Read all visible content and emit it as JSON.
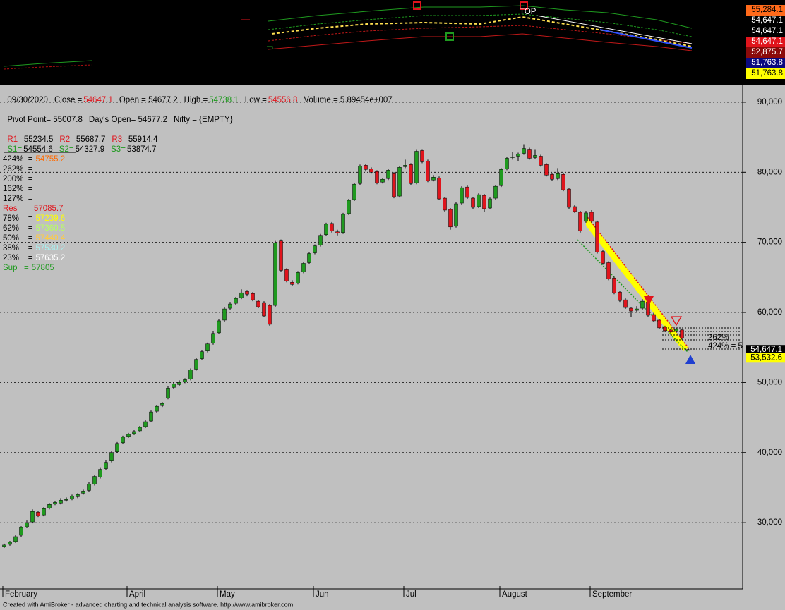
{
  "chart_data": {
    "type": "candlestick",
    "categories": [
      "February",
      null,
      null,
      null,
      null,
      null,
      null,
      null,
      null,
      null,
      null,
      null,
      null,
      null,
      null,
      null,
      null,
      null,
      null,
      null,
      null,
      null,
      "April",
      null,
      null,
      null,
      null,
      null,
      null,
      null,
      null,
      null,
      null,
      null,
      null,
      null,
      null,
      null,
      "May",
      null,
      null,
      null,
      null,
      null,
      null,
      null,
      null,
      null,
      null,
      null,
      null,
      null,
      null,
      null,
      null,
      "Jun",
      null,
      null,
      null,
      null,
      null,
      null,
      null,
      null,
      null,
      null,
      null,
      null,
      null,
      null,
      null,
      "Jul",
      null,
      null,
      null,
      null,
      null,
      null,
      null,
      null,
      null,
      null,
      null,
      null,
      null,
      null,
      null,
      null,
      "August",
      null,
      null,
      null,
      null,
      null,
      null,
      null,
      null,
      null,
      null,
      null,
      null,
      null,
      null,
      null,
      "September",
      null,
      null,
      null,
      null,
      null,
      null,
      null,
      null,
      null,
      null,
      null,
      null,
      null,
      null,
      null,
      null,
      null
    ],
    "open": [
      26600,
      26900,
      27300,
      28200,
      29400,
      30100,
      31500,
      31100,
      32100,
      32700,
      32800,
      33300,
      33400,
      33700,
      34200,
      34600,
      35500,
      36500,
      37700,
      38800,
      40100,
      41400,
      42300,
      42700,
      43100,
      43700,
      44500,
      45900,
      46700,
      47800,
      49300,
      49700,
      50100,
      50500,
      51900,
      53400,
      54500,
      55600,
      57100,
      58900,
      60600,
      61300,
      62100,
      63000,
      62700,
      61600,
      61400,
      61000,
      61000,
      70200,
      66100,
      64300,
      64200,
      65800,
      67100,
      68500,
      69600,
      71100,
      72700,
      71500,
      71400,
      74100,
      76100,
      78400,
      81000,
      80500,
      80100,
      78600,
      79100,
      79800,
      76600,
      80800,
      81100,
      78500,
      83100,
      81600,
      78900,
      79200,
      76300,
      74700,
      72300,
      75600,
      77900,
      76300,
      75100,
      76700,
      74900,
      76300,
      78100,
      80500,
      82100,
      82300,
      82700,
      83300,
      82100,
      82300,
      81100,
      79700,
      79100,
      79700,
      77600,
      75100,
      74300,
      73000,
      74300,
      72900,
      68700,
      67100,
      64900,
      62900,
      61800,
      60600,
      60300,
      60600,
      61500,
      59700,
      58900,
      57900,
      57500,
      57300,
      57500,
      54677.2
    ],
    "high": [
      27000,
      27400,
      28200,
      29500,
      30300,
      31900,
      31700,
      32200,
      32800,
      33100,
      33500,
      33600,
      34000,
      34200,
      34700,
      35800,
      36800,
      37900,
      38900,
      40200,
      41500,
      42400,
      42800,
      43200,
      43800,
      44600,
      46000,
      46800,
      47200,
      49500,
      50000,
      50300,
      50600,
      52000,
      53500,
      54600,
      55700,
      57300,
      59100,
      60800,
      61500,
      62200,
      63300,
      63200,
      62900,
      61800,
      61600,
      61200,
      70200,
      70400,
      66300,
      64600,
      65900,
      67200,
      68600,
      69700,
      71200,
      72800,
      72900,
      71800,
      74200,
      76200,
      78500,
      81100,
      81200,
      80700,
      80300,
      79200,
      80500,
      80000,
      80900,
      81800,
      81300,
      83300,
      83300,
      81800,
      79600,
      79400,
      76500,
      74900,
      75700,
      78000,
      78100,
      76500,
      77000,
      76900,
      76400,
      78200,
      80600,
      82200,
      82900,
      82800,
      84000,
      83500,
      83300,
      82500,
      81300,
      79900,
      80600,
      79900,
      77800,
      75300,
      74500,
      74500,
      74600,
      73100,
      68900,
      67300,
      65100,
      63100,
      62000,
      60800,
      60900,
      61900,
      61700,
      59900,
      59100,
      58100,
      57700,
      57800,
      57700,
      54738.1
    ],
    "low": [
      26400,
      26700,
      27100,
      28000,
      29200,
      29900,
      30800,
      30900,
      31900,
      32500,
      32600,
      33000,
      33200,
      33500,
      34000,
      34400,
      35300,
      36300,
      37500,
      38600,
      39900,
      41200,
      42100,
      42500,
      42900,
      43500,
      44300,
      45700,
      46500,
      47600,
      49100,
      49500,
      49900,
      50300,
      51700,
      53200,
      54300,
      55400,
      56900,
      58700,
      60400,
      61100,
      61900,
      62300,
      61600,
      60600,
      59300,
      58100,
      60800,
      65800,
      64300,
      63800,
      64000,
      65600,
      66900,
      68300,
      69400,
      70900,
      71400,
      71000,
      71200,
      73900,
      75900,
      78200,
      80100,
      79800,
      78300,
      78400,
      78900,
      76300,
      76400,
      80600,
      78200,
      78300,
      81300,
      78600,
      78700,
      76000,
      74400,
      71800,
      72100,
      75400,
      76200,
      74800,
      74900,
      74400,
      74700,
      76100,
      77900,
      80300,
      81800,
      81600,
      82500,
      81800,
      81900,
      80800,
      79400,
      78800,
      78900,
      77300,
      74800,
      74200,
      71400,
      72800,
      72800,
      68400,
      66800,
      64600,
      62600,
      61500,
      60500,
      59300,
      60100,
      60400,
      59400,
      58600,
      57600,
      57200,
      57000,
      57100,
      56100,
      54556.8
    ],
    "close": [
      26800,
      27200,
      28000,
      29300,
      30000,
      31600,
      31000,
      32000,
      32600,
      32900,
      33200,
      33300,
      33800,
      34000,
      34500,
      35500,
      36600,
      37600,
      38600,
      40000,
      41300,
      42200,
      42600,
      43000,
      43600,
      44400,
      45800,
      46600,
      47000,
      49200,
      49800,
      50000,
      50400,
      51800,
      53300,
      54400,
      55500,
      57000,
      58800,
      60500,
      61200,
      62000,
      62800,
      62600,
      61800,
      60800,
      59500,
      58300,
      69900,
      66000,
      64500,
      64000,
      65700,
      67000,
      68400,
      69500,
      71000,
      72600,
      71600,
      71300,
      74000,
      76000,
      78300,
      80900,
      80400,
      80000,
      78500,
      79000,
      80300,
      76500,
      80700,
      81000,
      78400,
      83000,
      81500,
      78800,
      79300,
      76200,
      74600,
      72200,
      75500,
      77800,
      76400,
      75000,
      76800,
      74800,
      76200,
      78000,
      80400,
      82000,
      82200,
      82600,
      83400,
      82000,
      82400,
      81000,
      79600,
      79000,
      79800,
      77500,
      75000,
      74400,
      71600,
      74200,
      73000,
      68600,
      67000,
      64800,
      62800,
      61700,
      60700,
      60200,
      60500,
      61600,
      59600,
      58800,
      57800,
      57400,
      57200,
      57600,
      56300,
      54647.1
    ],
    "up_color": "#1f9a1f",
    "down_color": "#e0141c",
    "ylim": [
      20550,
      92510
    ],
    "yticks": [
      {
        "value": 30000,
        "label": "30,000"
      },
      {
        "value": 40000,
        "label": "40,000"
      },
      {
        "value": 50000,
        "label": "50,000"
      },
      {
        "value": 60000,
        "label": "60,000"
      },
      {
        "value": 70000,
        "label": "70,000"
      },
      {
        "value": 80000,
        "label": "80,000"
      },
      {
        "value": 90000,
        "label": "90,000"
      }
    ],
    "grid": true,
    "axis_tags": [
      {
        "value": 54647.1,
        "label": "54,647.1",
        "bg": "#000000",
        "fg": "#ffffff"
      },
      {
        "value": 53532.6,
        "label": "53,532.6",
        "bg": "#ffff00",
        "fg": "#000000"
      }
    ]
  },
  "info": {
    "date": "09/30/2020",
    "close_label": "Close =",
    "close": "54647.1",
    "open": "Open = 54677.2",
    "high_label": "High =",
    "high": "54738.1",
    "low_label": "Low =",
    "low": "54556.8",
    "volume": "Volume = 5.89454e+007",
    "pivot": "Pivot Point= 55007.8",
    "days_open": "Day's Open= 54677.2",
    "symbol": "Nifty = {EMPTY}",
    "r1_label": "R1=",
    "r1": "55234.5",
    "r2_label": "R2=",
    "r2": "55687.7",
    "r3_label": "R3=",
    "r3": "55914.4",
    "s1_label": "S1=",
    "s1": "54554.6",
    "s2_label": "S2=",
    "s2": "54327.9",
    "s3_label": "S3=",
    "s3": "53874.7"
  },
  "fib_levels": [
    {
      "label": "424%  =",
      "value": "54755.2",
      "color": "#ff6a00",
      "label_color": "#000000"
    },
    {
      "label": "262%  =",
      "label_color": "#000000"
    },
    {
      "label": "200%  =",
      "label_color": "#000000"
    },
    {
      "label": "162%  =",
      "label_color": "#000000"
    },
    {
      "label": "127%  =",
      "label_color": "#000000"
    },
    {
      "label": "Res    =",
      "value": "57085.7",
      "color": "#e0141c",
      "label_color": "#e0141c"
    },
    {
      "label": "78%    =",
      "value": "57239.6",
      "color": "#ffff00",
      "label_color": "#000000"
    },
    {
      "label": "62%    =",
      "value": "57360.5",
      "color": "#b8ff60",
      "label_color": "#000000"
    },
    {
      "label": "50%    =",
      "value": "57440.4",
      "color": "#ffcc40",
      "label_color": "#000000"
    },
    {
      "label": "38%    =",
      "value": "57530.2",
      "color": "#a8f0f0",
      "label_color": "#000000"
    },
    {
      "label": "23%    =",
      "value": "57635.2",
      "color": "#ffffff",
      "label_color": "#000000"
    },
    {
      "label": "Sup   =",
      "value": "57805",
      "color": "#1f9a1f",
      "label_color": "#1f9a1f"
    }
  ],
  "overlay_labels": [
    "262%",
    "424% = 5"
  ],
  "top_pane": {
    "marker": "TOP",
    "tags": [
      {
        "text": "55,284.1",
        "bg": "#ff6a1a",
        "fg": "#000000"
      },
      {
        "text": "54,647.1",
        "bg": "#000000",
        "fg": "#ffffff"
      },
      {
        "text": "54,647.1",
        "bg": "#000000",
        "fg": "#ffffff"
      },
      {
        "text": "54,647.1",
        "bg": "#e0141c",
        "fg": "#ffffff"
      },
      {
        "text": "52,875.7",
        "bg": "#8b0a0a",
        "fg": "#ffffff"
      },
      {
        "text": "51,763.8",
        "bg": "#0a0a80",
        "fg": "#ffffff"
      },
      {
        "text": "51,763.8",
        "bg": "#ffff00",
        "fg": "#000000"
      }
    ]
  },
  "footer": "Created with AmiBroker - advanced charting and technical analysis software. http://www.amibroker.com"
}
